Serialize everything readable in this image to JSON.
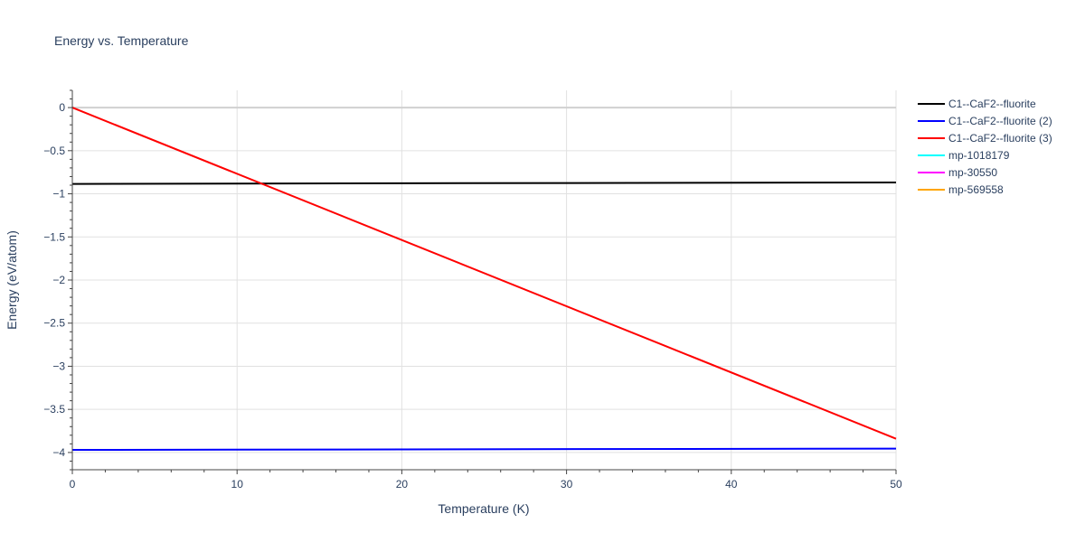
{
  "chart_data": {
    "type": "line",
    "title": "Energy vs. Temperature",
    "xlabel": "Temperature (K)",
    "ylabel": "Energy (eV/atom)",
    "xlim": [
      0,
      50
    ],
    "ylim": [
      -4.2,
      0.2
    ],
    "xticks": [
      0,
      10,
      20,
      30,
      40,
      50
    ],
    "xtick_labels": [
      "0",
      "10",
      "20",
      "30",
      "40",
      "50"
    ],
    "yticks": [
      0,
      -0.5,
      -1,
      -1.5,
      -2,
      -2.5,
      -3,
      -3.5,
      -4
    ],
    "ytick_labels": [
      "0",
      "−0.5",
      "−1",
      "−1.5",
      "−2",
      "−2.5",
      "−3",
      "−3.5",
      "−4"
    ],
    "grid": true,
    "legend_position": "right",
    "series": [
      {
        "name": "C1--CaF2--fluorite",
        "color": "#000000",
        "x": [
          0,
          50
        ],
        "y": [
          -0.885,
          -0.868
        ]
      },
      {
        "name": "C1--CaF2--fluorite (2)",
        "color": "#0000ff",
        "x": [
          0,
          50
        ],
        "y": [
          -3.97,
          -3.955
        ]
      },
      {
        "name": "C1--CaF2--fluorite (3)",
        "color": "#ff0000",
        "x": [
          0,
          50
        ],
        "y": [
          0.0,
          -3.84
        ]
      },
      {
        "name": "mp-1018179",
        "color": "#00ffff",
        "x": [],
        "y": []
      },
      {
        "name": "mp-30550",
        "color": "#ff00ff",
        "x": [],
        "y": []
      },
      {
        "name": "mp-569558",
        "color": "#ffa500",
        "x": [],
        "y": []
      }
    ]
  }
}
